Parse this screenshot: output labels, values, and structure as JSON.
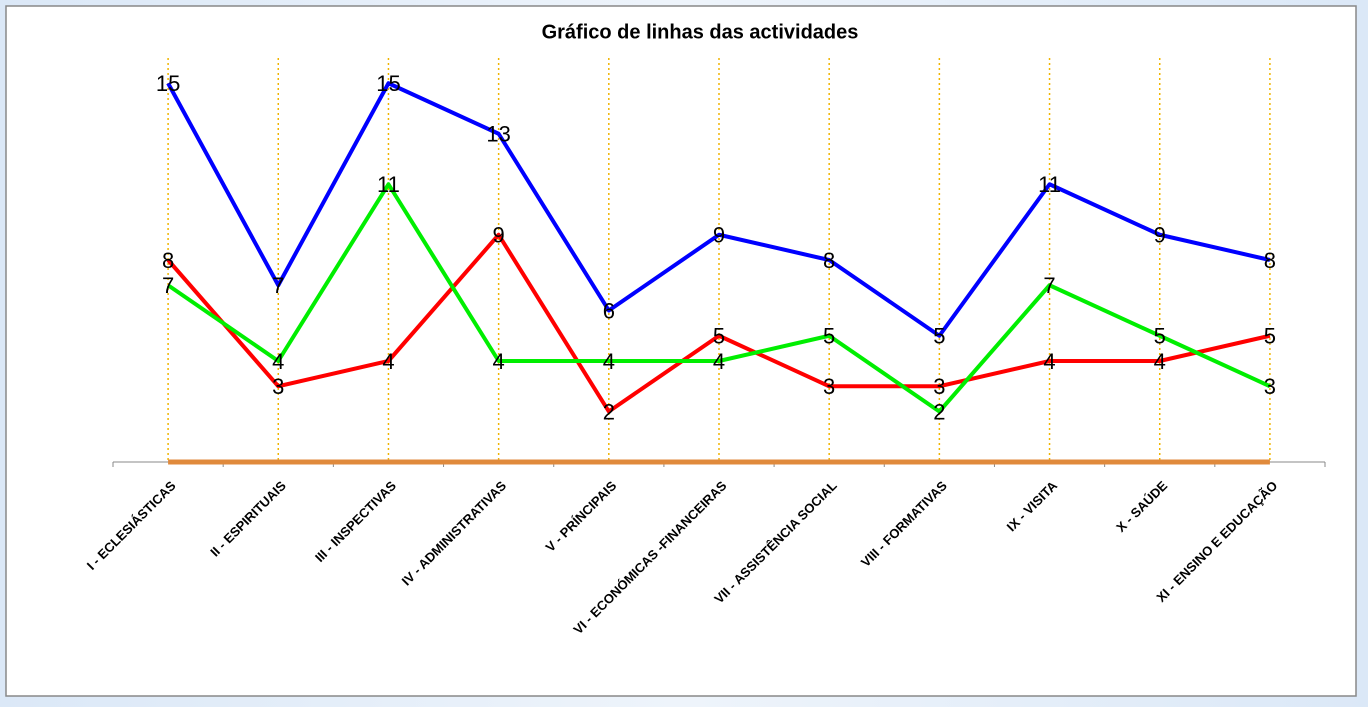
{
  "chart_data": {
    "type": "line",
    "title": "Gráfico de linhas das actividades",
    "categories": [
      "I - ECLESIÁSTICAS",
      "II - ESPIRITUAIS",
      "III - INSPECTIVAS",
      "IV - ADMINISTRATIVAS",
      "V - PRÍNCIPAIS",
      "VI - ECONÓMICAS -FINANCEIRAS",
      "VII - ASSISTÊNCIA SOCIAL",
      "VIII - FORMATIVAS",
      "IX - VISITA",
      "X - SAÚDE",
      "XI - ENSINO E EDUCAÇÃO"
    ],
    "series": [
      {
        "color": "#0000ff",
        "values": [
          15,
          7,
          15,
          13,
          6,
          9,
          8,
          5,
          11,
          9,
          8
        ],
        "labels": true
      },
      {
        "color": "#00ee00",
        "values": [
          7,
          4,
          11,
          4,
          4,
          4,
          5,
          2,
          7,
          5,
          3
        ],
        "labels": true
      },
      {
        "color": "#ff0000",
        "values": [
          8,
          3,
          4,
          9,
          2,
          5,
          3,
          3,
          4,
          4,
          5
        ],
        "labels": true
      },
      {
        "color": "#e08a3c",
        "values": [
          0,
          0,
          0,
          0,
          0,
          0,
          0,
          0,
          0,
          0,
          0
        ],
        "labels": false
      }
    ],
    "ylim": [
      0,
      16
    ],
    "grid": "x",
    "grid_color": "#f0b400"
  }
}
